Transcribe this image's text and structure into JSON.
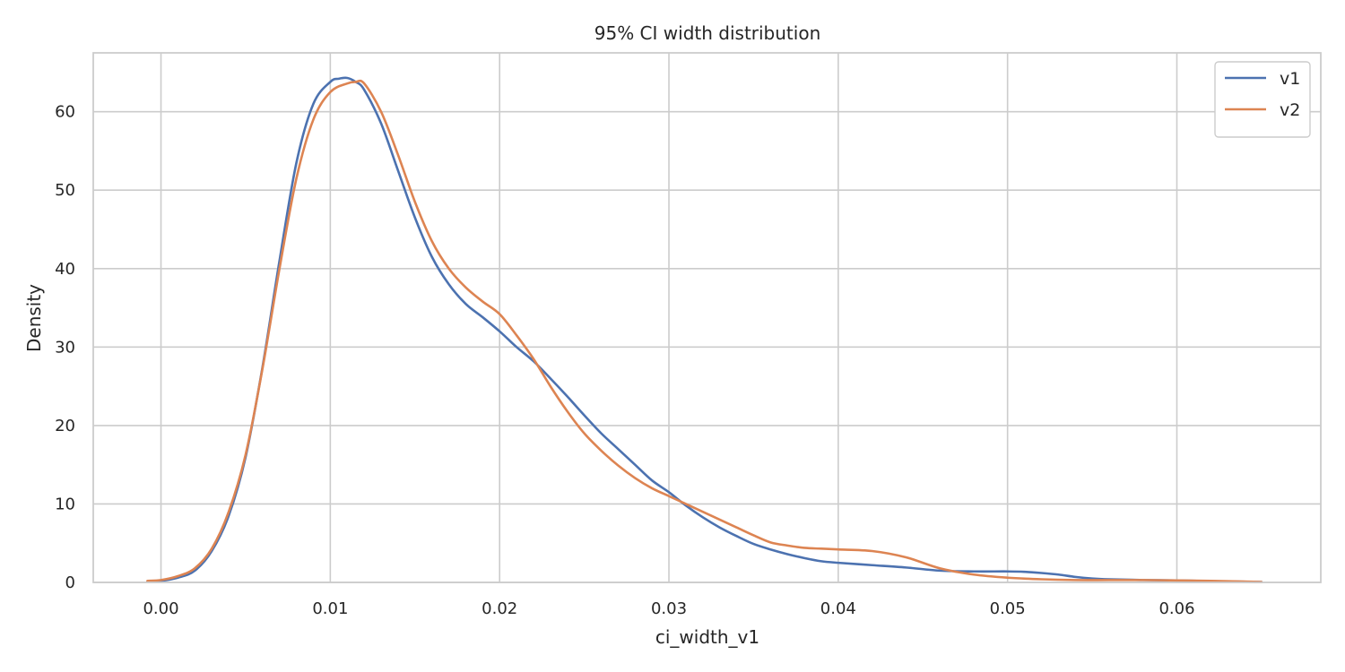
{
  "chart_data": {
    "type": "line",
    "title": "95% CI width distribution",
    "xlabel": "ci_width_v1",
    "ylabel": "Density",
    "xlim": [
      -0.004,
      0.0685
    ],
    "ylim": [
      0,
      67.5
    ],
    "xticks": [
      0.0,
      0.01,
      0.02,
      0.03,
      0.04,
      0.05,
      0.06
    ],
    "xtick_labels": [
      "0.00",
      "0.01",
      "0.02",
      "0.03",
      "0.04",
      "0.05",
      "0.06"
    ],
    "yticks": [
      0,
      10,
      20,
      30,
      40,
      50,
      60
    ],
    "ytick_labels": [
      "0",
      "10",
      "20",
      "30",
      "40",
      "50",
      "60"
    ],
    "grid": true,
    "legend_position": "top-right",
    "series": [
      {
        "name": "v1",
        "color": "#4c72b0",
        "x": [
          -0.0008,
          0.0,
          0.001,
          0.002,
          0.003,
          0.004,
          0.005,
          0.006,
          0.007,
          0.008,
          0.009,
          0.01,
          0.0105,
          0.011,
          0.0115,
          0.012,
          0.013,
          0.014,
          0.015,
          0.016,
          0.017,
          0.018,
          0.019,
          0.02,
          0.021,
          0.022,
          0.023,
          0.024,
          0.025,
          0.026,
          0.027,
          0.028,
          0.029,
          0.03,
          0.031,
          0.032,
          0.033,
          0.034,
          0.035,
          0.036,
          0.037,
          0.038,
          0.039,
          0.04,
          0.042,
          0.044,
          0.046,
          0.048,
          0.05,
          0.051,
          0.052,
          0.053,
          0.054,
          0.055,
          0.056,
          0.058,
          0.06,
          0.062,
          0.065
        ],
        "y": [
          0.1,
          0.2,
          0.6,
          1.5,
          4.0,
          8.5,
          16.0,
          27.5,
          41.0,
          53.5,
          61.0,
          63.8,
          64.2,
          64.3,
          63.8,
          62.8,
          58.5,
          52.5,
          46.5,
          41.5,
          38.0,
          35.5,
          33.8,
          32.0,
          30.0,
          28.2,
          26.0,
          23.7,
          21.3,
          19.0,
          17.0,
          15.0,
          13.0,
          11.5,
          9.8,
          8.3,
          7.0,
          5.9,
          4.9,
          4.2,
          3.6,
          3.1,
          2.7,
          2.5,
          2.2,
          1.9,
          1.5,
          1.4,
          1.4,
          1.35,
          1.2,
          1.0,
          0.7,
          0.5,
          0.4,
          0.3,
          0.25,
          0.15,
          0.05
        ]
      },
      {
        "name": "v2",
        "color": "#dd8452",
        "x": [
          -0.0008,
          0.0,
          0.001,
          0.002,
          0.003,
          0.004,
          0.005,
          0.006,
          0.007,
          0.008,
          0.009,
          0.01,
          0.011,
          0.0115,
          0.012,
          0.013,
          0.014,
          0.015,
          0.016,
          0.017,
          0.018,
          0.019,
          0.02,
          0.021,
          0.022,
          0.023,
          0.024,
          0.025,
          0.026,
          0.027,
          0.028,
          0.029,
          0.03,
          0.031,
          0.032,
          0.033,
          0.034,
          0.035,
          0.036,
          0.037,
          0.038,
          0.039,
          0.04,
          0.042,
          0.044,
          0.046,
          0.048,
          0.05,
          0.052,
          0.054,
          0.056,
          0.058,
          0.06,
          0.062,
          0.065
        ],
        "y": [
          0.2,
          0.3,
          0.8,
          1.8,
          4.3,
          9.0,
          16.3,
          27.3,
          40.0,
          51.5,
          59.0,
          62.5,
          63.6,
          63.8,
          63.6,
          60.0,
          54.5,
          48.5,
          43.5,
          40.0,
          37.6,
          35.8,
          34.2,
          31.5,
          28.5,
          25.0,
          21.8,
          19.0,
          16.8,
          14.9,
          13.3,
          12.0,
          11.0,
          10.0,
          9.0,
          8.0,
          7.0,
          6.0,
          5.1,
          4.7,
          4.4,
          4.3,
          4.2,
          4.0,
          3.2,
          1.8,
          1.0,
          0.6,
          0.4,
          0.3,
          0.3,
          0.3,
          0.25,
          0.2,
          0.05
        ]
      }
    ]
  }
}
